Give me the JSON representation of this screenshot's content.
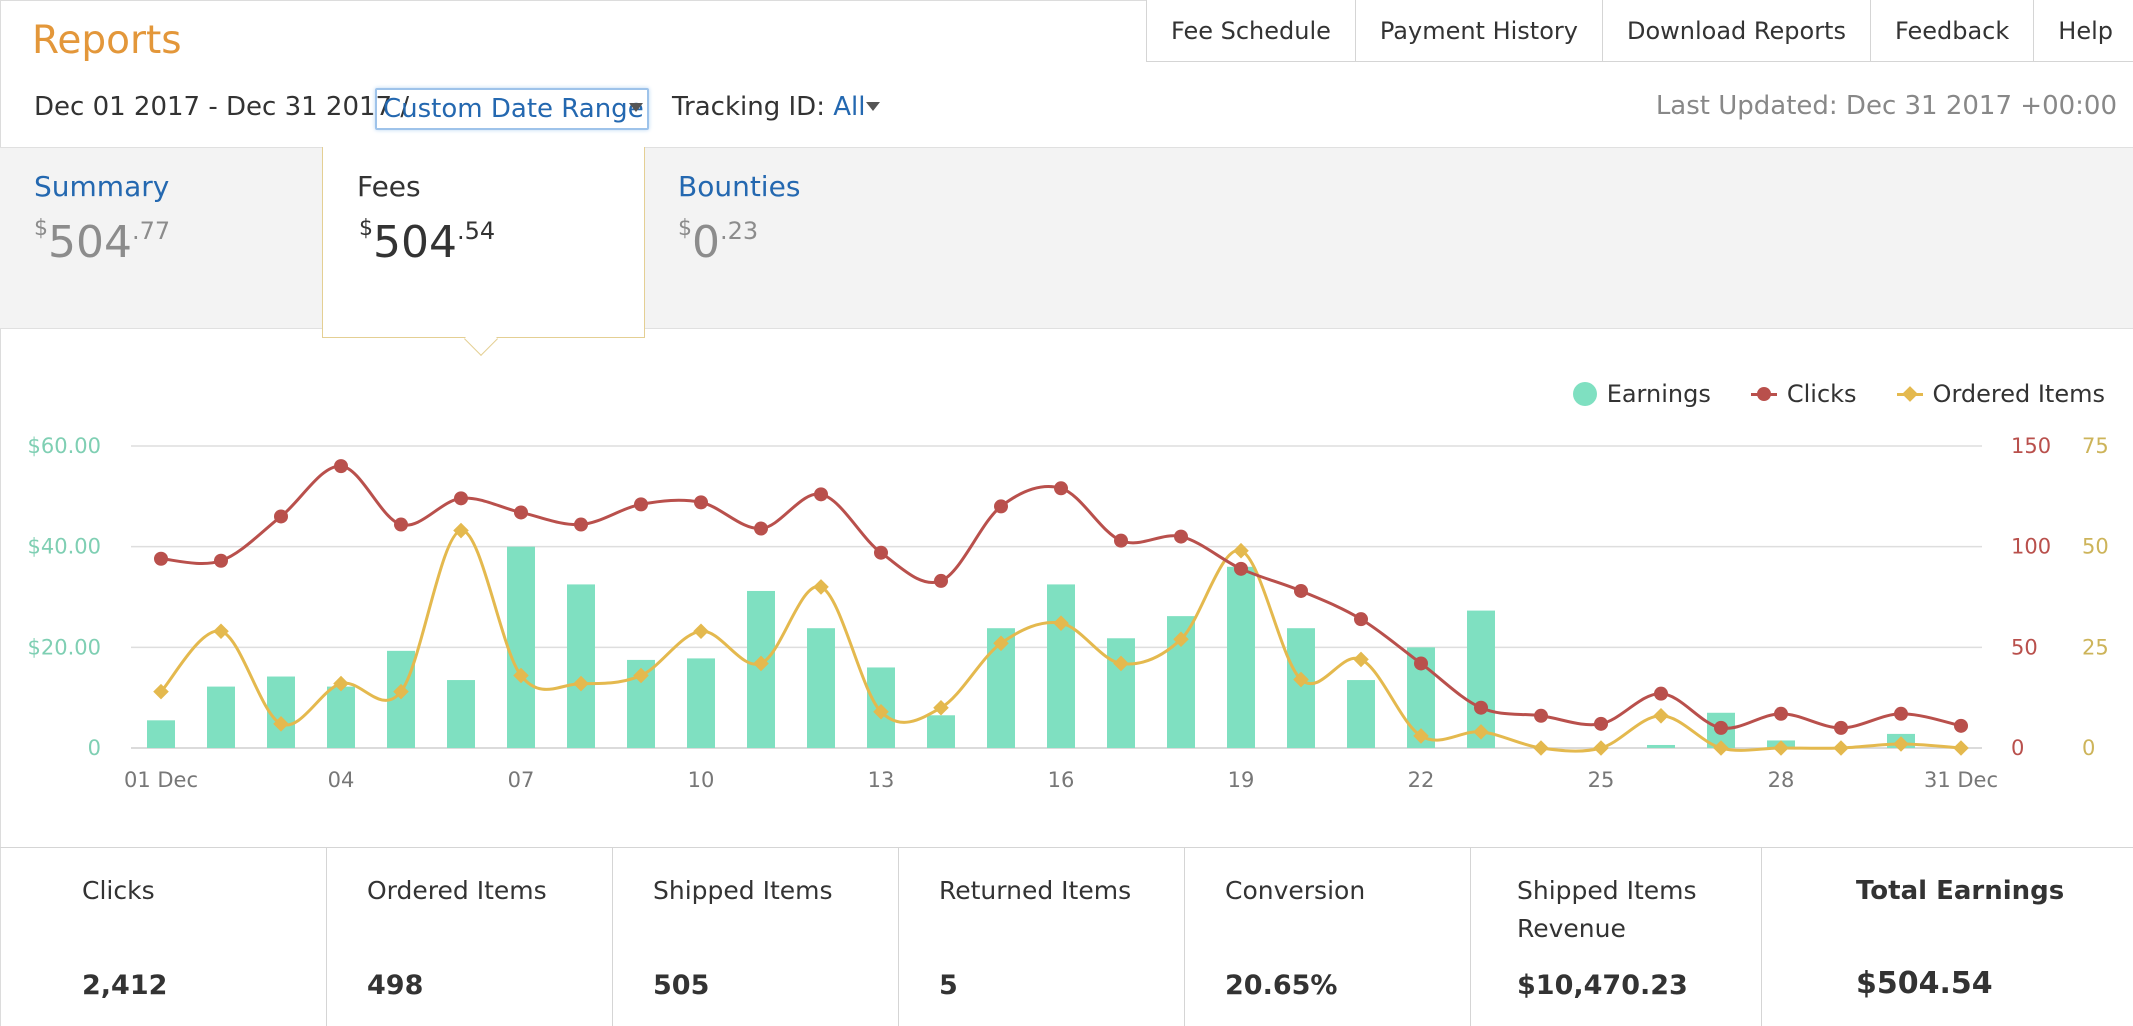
{
  "header": {
    "title": "Reports",
    "nav": [
      "Fee Schedule",
      "Payment History",
      "Download Reports",
      "Feedback",
      "Help"
    ],
    "date_range": "Dec 01 2017 - Dec 31 2017 /",
    "date_select": "Custom Date Range",
    "tracking_label": "Tracking ID:",
    "tracking_value": "All",
    "last_updated": "Last Updated: Dec 31 2017 +00:00"
  },
  "tabs": {
    "summary": {
      "label": "Summary",
      "cur": "$",
      "whole": "504",
      "dec": ".77"
    },
    "fees": {
      "label": "Fees",
      "cur": "$",
      "whole": "504",
      "dec": ".54"
    },
    "bounties": {
      "label": "Bounties",
      "cur": "$",
      "whole": "0",
      "dec": ".23"
    }
  },
  "legend": {
    "earnings": "Earnings",
    "clicks": "Clicks",
    "ordered": "Ordered Items"
  },
  "chart_data": {
    "type": "bar",
    "categories": [
      "01 Dec",
      "02",
      "03",
      "04",
      "05",
      "06",
      "07",
      "08",
      "09",
      "10",
      "11",
      "12",
      "13",
      "14",
      "15",
      "16",
      "17",
      "18",
      "19",
      "20",
      "21",
      "22",
      "23",
      "24",
      "25",
      "26",
      "27",
      "28",
      "29",
      "30",
      "31 Dec"
    ],
    "x_tick_labels": [
      "01 Dec",
      "04",
      "07",
      "10",
      "13",
      "16",
      "19",
      "22",
      "25",
      "28",
      "31 Dec"
    ],
    "x_tick_indices": [
      0,
      3,
      6,
      9,
      12,
      15,
      18,
      21,
      24,
      27,
      30
    ],
    "y_left": {
      "ticks": [
        "0",
        "$20.00",
        "$40.00",
        "$60.00"
      ],
      "min": 0,
      "max": 60,
      "color": "#7fcfb3"
    },
    "y_right_clicks": {
      "ticks": [
        "0",
        "50",
        "100",
        "150"
      ],
      "min": 0,
      "max": 150,
      "color": "#b9504c"
    },
    "y_right_ordered": {
      "ticks": [
        "0",
        "25",
        "50",
        "75"
      ],
      "min": 0,
      "max": 75,
      "color": "#cdb45a"
    },
    "series": [
      {
        "name": "Earnings",
        "type": "bar",
        "axis": "left",
        "color": "#7fe0c1",
        "values": [
          5.5,
          12.2,
          14.2,
          12.2,
          19.3,
          13.5,
          40.0,
          32.5,
          17.5,
          17.8,
          31.2,
          23.8,
          16.0,
          6.5,
          23.8,
          32.5,
          21.8,
          26.2,
          36.0,
          23.8,
          13.5,
          20.0,
          27.3,
          0,
          0,
          0.6,
          7.0,
          1.5,
          0,
          2.8,
          0
        ]
      },
      {
        "name": "Clicks",
        "type": "line",
        "axis": "right_clicks",
        "color": "#b9504c",
        "values": [
          94,
          93,
          115,
          140,
          111,
          124,
          117,
          111,
          121,
          122,
          109,
          126,
          97,
          83,
          120,
          129,
          103,
          105,
          89,
          78,
          64,
          42,
          20,
          16,
          12,
          27,
          10,
          17,
          10,
          17,
          11
        ]
      },
      {
        "name": "Ordered Items",
        "type": "line",
        "axis": "right_ordered",
        "color": "#e4b94e",
        "values": [
          14,
          29,
          6,
          16,
          14,
          54,
          18,
          16,
          18,
          29,
          21,
          40,
          9,
          10,
          26,
          31,
          21,
          27,
          49,
          17,
          22,
          3,
          4,
          0,
          0,
          8,
          0,
          0,
          0,
          1,
          0
        ]
      }
    ],
    "grid": true,
    "legend_position": "top-right"
  },
  "stats": [
    {
      "label": "Clicks",
      "value": "2,412"
    },
    {
      "label": "Ordered Items",
      "value": "498"
    },
    {
      "label": "Shipped Items",
      "value": "505"
    },
    {
      "label": "Returned Items",
      "value": "5"
    },
    {
      "label": "Conversion",
      "value": "20.65%"
    },
    {
      "label": "Shipped Items Revenue",
      "value": "$10,470.23"
    },
    {
      "label": "Total Earnings",
      "value": "$504.54"
    }
  ]
}
